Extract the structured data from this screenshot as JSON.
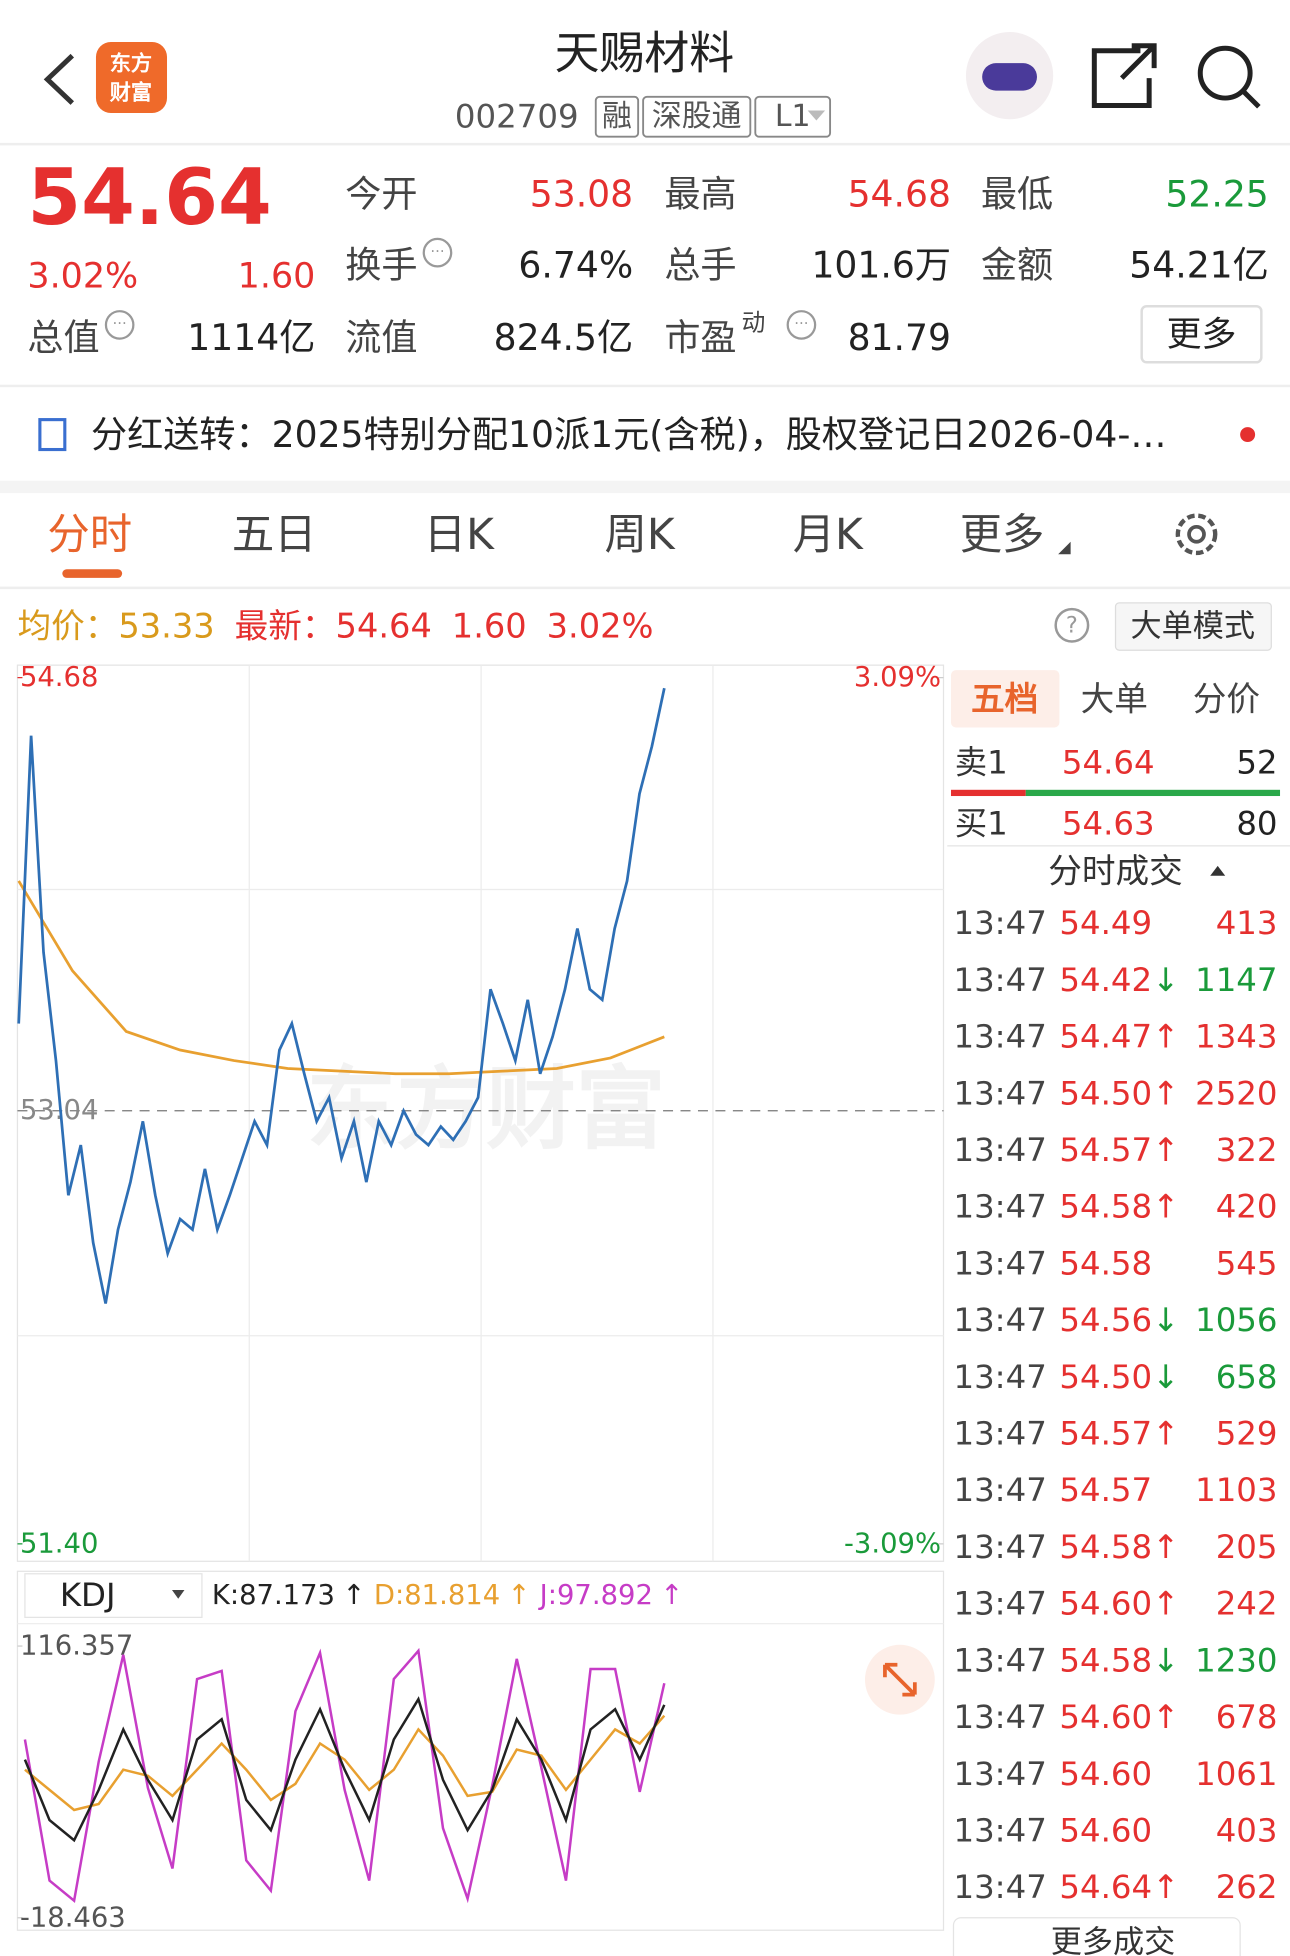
{
  "header": {
    "title": "天赐材料",
    "code": "002709",
    "tags": [
      "融",
      "深股通",
      "L1"
    ],
    "logo": [
      "东方",
      "财富"
    ]
  },
  "quote": {
    "price": "54.64",
    "change_pct": "3.02%",
    "change": "1.60",
    "more": "更多",
    "fields": [
      {
        "label": "今开",
        "value": "53.08",
        "color": "#e5302f"
      },
      {
        "label": "最高",
        "value": "54.68",
        "color": "#e5302f"
      },
      {
        "label": "最低",
        "value": "52.25",
        "color": "#1a9a3a"
      },
      {
        "label": "换手",
        "value": "6.74%"
      },
      {
        "label": "总手",
        "value": "101.6万"
      },
      {
        "label": "金额",
        "value": "54.21亿"
      },
      {
        "label": "总值",
        "value": "1114亿"
      },
      {
        "label": "流值",
        "value": "824.5亿"
      },
      {
        "label": "市盈",
        "sup": "动",
        "value": "81.79"
      }
    ]
  },
  "notice": "分红送转：2025特别分配10派1元(含税)，股权登记日2026-04-…",
  "tabs": [
    "分时",
    "五日",
    "日K",
    "周K",
    "月K",
    "更多"
  ],
  "summary": {
    "avg_label": "均价：",
    "avg": "53.33",
    "last_label": "最新：",
    "last": "54.64",
    "change": "1.60",
    "change_pct": "3.02%",
    "mode_button": "大单模式"
  },
  "chart_data": [
    {
      "type": "line",
      "watermark": "东方财富",
      "ylim": [
        51.4,
        54.68
      ],
      "yticks": [
        54.68,
        53.04,
        {
          "value": 51.4,
          "label": "51.40"
        }
      ],
      "y2lim": [
        -3.09,
        3.09
      ],
      "y2ticks": [
        {
          "value": 3.09,
          "label": "3.09%"
        },
        {
          "value": -3.09,
          "label": "-3.09%"
        }
      ],
      "series": [
        {
          "color": "#2e6fb5",
          "values": [
            53.37,
            54.46,
            53.64,
            53.23,
            52.72,
            52.91,
            52.54,
            52.31,
            52.59,
            52.77,
            53.0,
            52.72,
            52.5,
            52.63,
            52.59,
            52.82,
            52.59,
            52.72,
            52.86,
            53.0,
            52.91,
            53.27,
            53.37,
            53.18,
            53.0,
            53.09,
            52.86,
            53.0,
            52.77,
            53.0,
            52.91,
            53.04,
            52.95,
            52.91,
            52.98,
            52.93,
            53.0,
            53.09,
            53.5,
            53.37,
            53.23,
            53.46,
            53.18,
            53.32,
            53.5,
            53.73,
            53.5,
            53.46,
            53.73,
            53.91,
            54.24,
            54.42,
            54.64
          ]
        },
        {
          "color": "#e8a030",
          "values": [
            53.91,
            53.57,
            53.34,
            53.27,
            53.23,
            53.2,
            53.19,
            53.18,
            53.18,
            53.19,
            53.2,
            53.24,
            53.32
          ]
        }
      ]
    },
    {
      "type": "line",
      "indicator": "KDJ",
      "ylim": [
        -18.463,
        116.357
      ],
      "yticks": [
        116.357,
        -18.463
      ],
      "series": [
        {
          "name": "K:",
          "color": "#222222",
          "latest": 87.173,
          "trend": "↑",
          "values": [
            60,
            30,
            20,
            45,
            75,
            50,
            30,
            70,
            80,
            40,
            25,
            60,
            85,
            55,
            30,
            70,
            90,
            50,
            25,
            45,
            80,
            60,
            30,
            75,
            85,
            60,
            87.173
          ]
        },
        {
          "name": "D:",
          "color": "#e8a030",
          "latest": 81.814,
          "trend": "↑",
          "values": [
            55,
            45,
            35,
            38,
            55,
            52,
            42,
            55,
            68,
            55,
            40,
            48,
            68,
            60,
            45,
            55,
            75,
            62,
            42,
            44,
            65,
            62,
            45,
            60,
            75,
            68,
            81.814
          ]
        },
        {
          "name": "J:",
          "color": "#c63cc6",
          "latest": 97.892,
          "trend": "↑",
          "values": [
            70,
            0,
            -10,
            59,
            112,
            46,
            6,
            100,
            104,
            10,
            -5,
            84,
            113,
            45,
            0,
            100,
            114,
            26,
            -9,
            47,
            110,
            56,
            0,
            105,
            105,
            44,
            97.892
          ]
        }
      ]
    }
  ],
  "order_book": {
    "tabs": [
      "五档",
      "大单",
      "分价"
    ],
    "rows": [
      {
        "label": "卖1",
        "price": "54.64",
        "volume": 52
      },
      {
        "label": "买1",
        "price": "54.63",
        "volume": 80
      }
    ]
  },
  "trades": {
    "title": "分时成交",
    "more": "更多成交",
    "rows": [
      {
        "time": "13:47",
        "price": "54.49",
        "volume": 413,
        "color": "#e5302f"
      },
      {
        "time": "13:47",
        "price": "54.42",
        "dir": "↓",
        "volume": 1147,
        "color": "#1a9a3a"
      },
      {
        "time": "13:47",
        "price": "54.47",
        "dir": "↑",
        "volume": 1343,
        "color": "#e5302f"
      },
      {
        "time": "13:47",
        "price": "54.50",
        "dir": "↑",
        "volume": 2520,
        "color": "#e5302f"
      },
      {
        "time": "13:47",
        "price": "54.57",
        "dir": "↑",
        "volume": 322,
        "color": "#e5302f"
      },
      {
        "time": "13:47",
        "price": "54.58",
        "dir": "↑",
        "volume": 420,
        "color": "#e5302f"
      },
      {
        "time": "13:47",
        "price": "54.58",
        "volume": 545,
        "color": "#e5302f"
      },
      {
        "time": "13:47",
        "price": "54.56",
        "dir": "↓",
        "volume": 1056,
        "color": "#1a9a3a"
      },
      {
        "time": "13:47",
        "price": "54.50",
        "dir": "↓",
        "volume": 658,
        "color": "#1a9a3a"
      },
      {
        "time": "13:47",
        "price": "54.57",
        "dir": "↑",
        "volume": 529,
        "color": "#e5302f"
      },
      {
        "time": "13:47",
        "price": "54.57",
        "volume": 1103,
        "color": "#e5302f"
      },
      {
        "time": "13:47",
        "price": "54.58",
        "dir": "↑",
        "volume": 205,
        "color": "#e5302f"
      },
      {
        "time": "13:47",
        "price": "54.60",
        "dir": "↑",
        "volume": 242,
        "color": "#e5302f"
      },
      {
        "time": "13:47",
        "price": "54.58",
        "dir": "↓",
        "volume": 1230,
        "color": "#1a9a3a"
      },
      {
        "time": "13:47",
        "price": "54.60",
        "dir": "↑",
        "volume": 678,
        "color": "#e5302f"
      },
      {
        "time": "13:47",
        "price": "54.60",
        "volume": 1061,
        "color": "#e5302f"
      },
      {
        "time": "13:47",
        "price": "54.60",
        "volume": 403,
        "color": "#e5302f"
      },
      {
        "time": "13:47",
        "price": "54.64",
        "dir": "↑",
        "volume": 262,
        "color": "#e5302f"
      }
    ]
  }
}
